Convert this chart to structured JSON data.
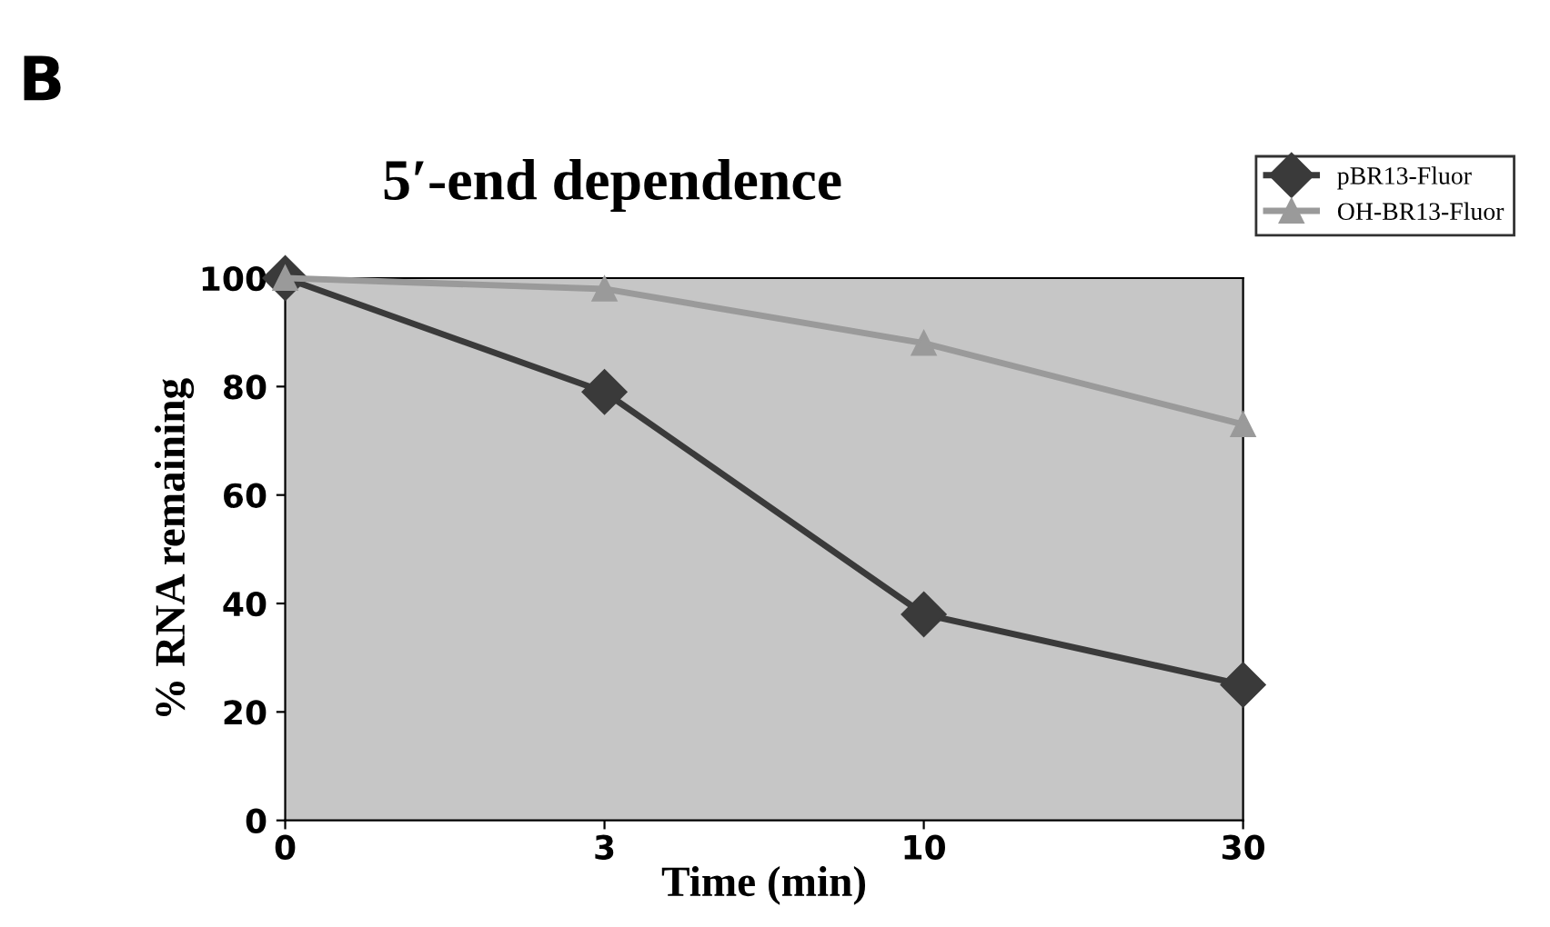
{
  "chart_data": {
    "type": "line",
    "title": "5′-end dependence",
    "xlabel": "Time (min)",
    "ylabel": "% RNA remaining",
    "annotations": [
      "B"
    ],
    "categories": [
      "0",
      "3",
      "10",
      "30"
    ],
    "series": [
      {
        "name": "pBR13-Fluor",
        "color": "#3a3a3a",
        "marker": "diamond",
        "values": [
          100,
          79,
          38,
          25
        ]
      },
      {
        "name": "OH-BR13-Fluor",
        "color": "#9a9a9a",
        "marker": "triangle",
        "values": [
          100,
          98,
          88,
          73
        ]
      }
    ],
    "ylim": [
      0,
      100
    ],
    "yticks": [
      0,
      20,
      40,
      60,
      80,
      100
    ],
    "grid": false,
    "legend": "top right",
    "line_style": "solid"
  }
}
